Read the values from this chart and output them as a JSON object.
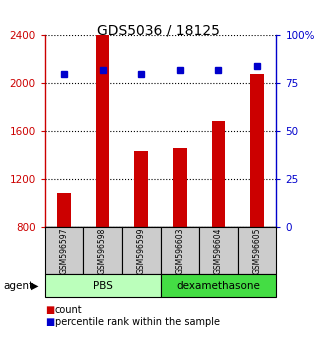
{
  "title": "GDS5036 / 18125",
  "samples": [
    "GSM596597",
    "GSM596598",
    "GSM596599",
    "GSM596603",
    "GSM596604",
    "GSM596605"
  ],
  "counts": [
    1080,
    2400,
    1430,
    1460,
    1680,
    2080
  ],
  "percentiles": [
    80,
    82,
    80,
    82,
    82,
    84
  ],
  "ylim_left": [
    800,
    2400
  ],
  "ylim_right": [
    0,
    100
  ],
  "yticks_left": [
    800,
    1200,
    1600,
    2000,
    2400
  ],
  "yticks_right": [
    0,
    25,
    50,
    75,
    100
  ],
  "ytick_labels_right": [
    "0",
    "25",
    "50",
    "75",
    "100%"
  ],
  "bar_color": "#cc0000",
  "dot_color": "#0000cc",
  "groups": [
    {
      "label": "PBS",
      "indices": [
        0,
        1,
        2
      ],
      "color": "#bbffbb"
    },
    {
      "label": "dexamethasone",
      "indices": [
        3,
        4,
        5
      ],
      "color": "#44dd44"
    }
  ],
  "agent_label": "agent",
  "legend_count_label": "count",
  "legend_percentile_label": "percentile rank within the sample",
  "title_fontsize": 10,
  "axis_label_color_left": "#cc0000",
  "axis_label_color_right": "#0000cc",
  "sample_box_color": "#cccccc",
  "bar_width": 0.35
}
